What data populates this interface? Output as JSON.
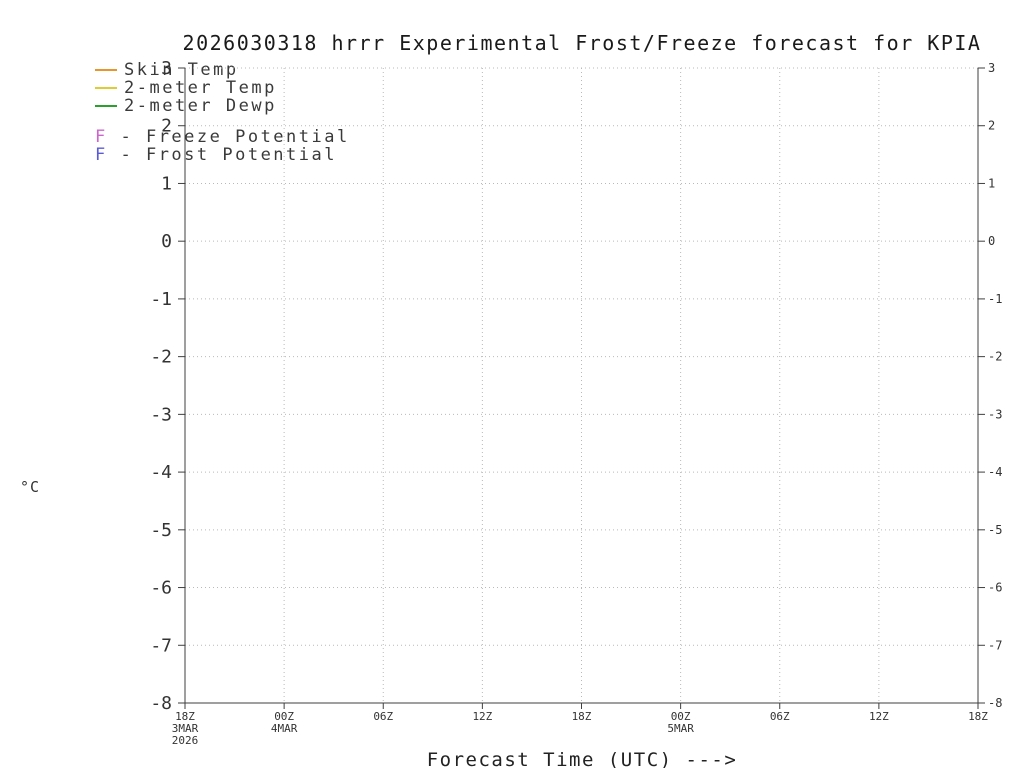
{
  "chart_data": {
    "type": "line",
    "title": "2026030318 hrrr Experimental Frost/Freeze forecast for KPIA",
    "xlabel": "Forecast Time (UTC) --->",
    "ylabel": "°C",
    "ylim": [
      -8,
      3
    ],
    "yticks": [
      3,
      2,
      1,
      0,
      -1,
      -2,
      -3,
      -4,
      -5,
      -6,
      -7,
      -8
    ],
    "xticks": [
      "18Z",
      "00Z",
      "06Z",
      "12Z",
      "18Z",
      "00Z",
      "06Z",
      "12Z",
      "18Z"
    ],
    "x_sub_labels": [
      {
        "tick_index": 0,
        "lines": [
          "3MAR",
          "2026"
        ]
      },
      {
        "tick_index": 1,
        "lines": [
          "4MAR"
        ]
      },
      {
        "tick_index": 5,
        "lines": [
          "5MAR"
        ]
      }
    ],
    "grid": true,
    "grid_style": "dotted",
    "legend_position": "top-left",
    "legend": [
      {
        "label": "Skin Temp",
        "swatch": "line",
        "color": "#e8962c"
      },
      {
        "label": "2-meter Temp",
        "swatch": "line",
        "color": "#ddcc33"
      },
      {
        "label": "2-meter Dewp",
        "swatch": "line",
        "color": "#2ca02c"
      },
      {
        "label": "Freeze Potential",
        "swatch": "symbol",
        "symbol": "F",
        "separator": "-",
        "color": "#cc66cc"
      },
      {
        "label": "Frost Potential",
        "swatch": "symbol",
        "symbol": "F",
        "separator": "-",
        "color": "#5a5ad8"
      }
    ],
    "series": [
      {
        "name": "Skin Temp",
        "color": "#e8962c",
        "points": []
      },
      {
        "name": "2-meter Temp",
        "color": "#ddcc33",
        "points": []
      },
      {
        "name": "2-meter Dewp",
        "color": "#2ca02c",
        "points": []
      },
      {
        "name": "Freeze Potential",
        "marker": "F",
        "color": "#cc66cc",
        "points": []
      },
      {
        "name": "Frost Potential",
        "marker": "F",
        "color": "#5a5ad8",
        "points": []
      }
    ],
    "colors": {
      "grid": "#b9b9b9",
      "axis": "#3f3f3f",
      "text": "#333333"
    }
  }
}
